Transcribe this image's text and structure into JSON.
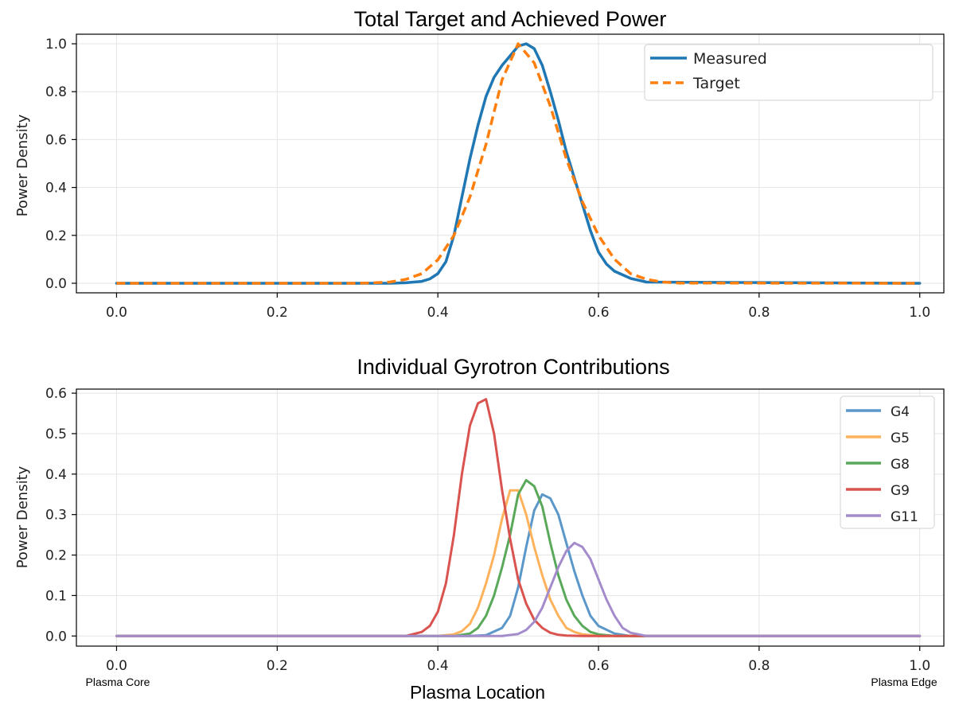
{
  "chart_data": [
    {
      "type": "line",
      "title": "Total Target and Achieved Power",
      "xlabel": "",
      "ylabel": "Power Density",
      "xlim": [
        -0.05,
        1.03
      ],
      "ylim": [
        -0.04,
        1.04
      ],
      "xticks": [
        0.0,
        0.2,
        0.4,
        0.6,
        0.8,
        1.0
      ],
      "xtick_labels": [
        "0.0",
        "0.2",
        "0.4",
        "0.6",
        "0.8",
        "1.0"
      ],
      "yticks": [
        0.0,
        0.2,
        0.4,
        0.6,
        0.8,
        1.0
      ],
      "ytick_labels": [
        "0.0",
        "0.2",
        "0.4",
        "0.6",
        "0.8",
        "1.0"
      ],
      "grid": true,
      "legend": "top-right",
      "series": [
        {
          "name": "Measured",
          "color": "#1f77b4",
          "style": "solid",
          "x": [
            0.0,
            0.34,
            0.36,
            0.38,
            0.39,
            0.4,
            0.41,
            0.42,
            0.43,
            0.44,
            0.45,
            0.46,
            0.47,
            0.48,
            0.49,
            0.5,
            0.51,
            0.52,
            0.53,
            0.54,
            0.55,
            0.56,
            0.57,
            0.58,
            0.59,
            0.6,
            0.61,
            0.62,
            0.64,
            0.66,
            1.0
          ],
          "y": [
            0.0,
            0.0,
            0.002,
            0.008,
            0.018,
            0.04,
            0.09,
            0.2,
            0.36,
            0.52,
            0.66,
            0.78,
            0.86,
            0.91,
            0.95,
            0.99,
            1.0,
            0.98,
            0.91,
            0.8,
            0.68,
            0.55,
            0.44,
            0.33,
            0.22,
            0.13,
            0.08,
            0.05,
            0.02,
            0.005,
            0.0
          ]
        },
        {
          "name": "Target",
          "color": "#ff7f0e",
          "style": "dashed",
          "x": [
            0.0,
            0.3,
            0.32,
            0.34,
            0.36,
            0.38,
            0.4,
            0.42,
            0.44,
            0.46,
            0.48,
            0.5,
            0.52,
            0.54,
            0.56,
            0.58,
            0.6,
            0.62,
            0.64,
            0.66,
            0.68,
            0.7,
            1.0
          ],
          "y": [
            0.0,
            0.0,
            0.002,
            0.005,
            0.016,
            0.04,
            0.098,
            0.2,
            0.36,
            0.58,
            0.85,
            1.0,
            0.92,
            0.74,
            0.52,
            0.34,
            0.2,
            0.1,
            0.04,
            0.016,
            0.005,
            0.001,
            0.0
          ]
        }
      ]
    },
    {
      "type": "line",
      "title": "Individual Gyrotron Contributions",
      "xlabel": "Plasma Location",
      "ylabel": "Power Density",
      "xlim": [
        -0.05,
        1.03
      ],
      "ylim": [
        -0.025,
        0.61
      ],
      "xticks": [
        0.0,
        0.2,
        0.4,
        0.6,
        0.8,
        1.0
      ],
      "xtick_labels": [
        "0.0",
        "0.2",
        "0.4",
        "0.6",
        "0.8",
        "1.0"
      ],
      "yticks": [
        0.0,
        0.1,
        0.2,
        0.3,
        0.4,
        0.5,
        0.6
      ],
      "ytick_labels": [
        "0.0",
        "0.1",
        "0.2",
        "0.3",
        "0.4",
        "0.5",
        "0.6"
      ],
      "grid": true,
      "legend": "top-right",
      "annotations": {
        "left": "Plasma Core",
        "right": "Plasma Edge"
      },
      "series": [
        {
          "name": "G4",
          "color": "#5b97c9",
          "x": [
            0.0,
            0.44,
            0.46,
            0.48,
            0.49,
            0.5,
            0.51,
            0.52,
            0.53,
            0.54,
            0.55,
            0.56,
            0.57,
            0.58,
            0.59,
            0.6,
            0.62,
            0.64,
            1.0
          ],
          "y": [
            0.0,
            0.0,
            0.002,
            0.02,
            0.05,
            0.12,
            0.22,
            0.31,
            0.35,
            0.34,
            0.3,
            0.23,
            0.16,
            0.1,
            0.05,
            0.025,
            0.006,
            0.0,
            0.0
          ]
        },
        {
          "name": "G5",
          "color": "#ffb25c",
          "x": [
            0.0,
            0.4,
            0.42,
            0.43,
            0.44,
            0.45,
            0.46,
            0.47,
            0.48,
            0.49,
            0.5,
            0.51,
            0.52,
            0.53,
            0.54,
            0.55,
            0.56,
            0.57,
            0.58,
            0.6,
            1.0
          ],
          "y": [
            0.0,
            0.0,
            0.004,
            0.012,
            0.03,
            0.07,
            0.13,
            0.2,
            0.29,
            0.36,
            0.36,
            0.3,
            0.22,
            0.15,
            0.09,
            0.05,
            0.02,
            0.01,
            0.004,
            0.0,
            0.0
          ]
        },
        {
          "name": "G8",
          "color": "#5aa95a",
          "x": [
            0.0,
            0.42,
            0.44,
            0.45,
            0.46,
            0.47,
            0.48,
            0.49,
            0.5,
            0.51,
            0.52,
            0.53,
            0.54,
            0.55,
            0.56,
            0.57,
            0.58,
            0.59,
            0.6,
            0.62,
            1.0
          ],
          "y": [
            0.0,
            0.0,
            0.006,
            0.02,
            0.05,
            0.1,
            0.17,
            0.25,
            0.35,
            0.385,
            0.37,
            0.32,
            0.23,
            0.15,
            0.09,
            0.05,
            0.025,
            0.01,
            0.004,
            0.0,
            0.0
          ]
        },
        {
          "name": "G9",
          "color": "#d9534f",
          "x": [
            0.0,
            0.36,
            0.38,
            0.39,
            0.4,
            0.41,
            0.42,
            0.43,
            0.44,
            0.45,
            0.46,
            0.47,
            0.48,
            0.49,
            0.5,
            0.51,
            0.52,
            0.53,
            0.54,
            0.55,
            0.56,
            0.58,
            1.0
          ],
          "y": [
            0.0,
            0.0,
            0.01,
            0.025,
            0.06,
            0.13,
            0.25,
            0.4,
            0.52,
            0.575,
            0.585,
            0.5,
            0.36,
            0.24,
            0.14,
            0.08,
            0.04,
            0.02,
            0.008,
            0.003,
            0.001,
            0.0,
            0.0
          ]
        },
        {
          "name": "G11",
          "color": "#a48ccc",
          "x": [
            0.0,
            0.48,
            0.5,
            0.51,
            0.52,
            0.53,
            0.54,
            0.55,
            0.56,
            0.57,
            0.58,
            0.59,
            0.6,
            0.61,
            0.62,
            0.63,
            0.64,
            0.66,
            1.0
          ],
          "y": [
            0.0,
            0.0,
            0.005,
            0.015,
            0.035,
            0.07,
            0.12,
            0.17,
            0.21,
            0.23,
            0.22,
            0.19,
            0.14,
            0.09,
            0.05,
            0.02,
            0.008,
            0.0,
            0.0
          ]
        }
      ]
    }
  ]
}
